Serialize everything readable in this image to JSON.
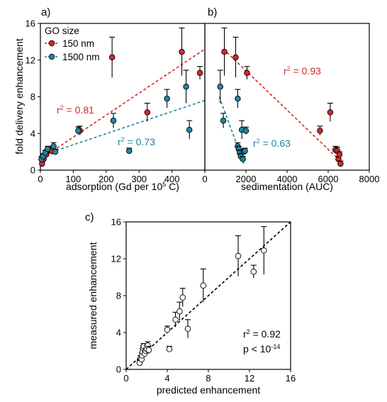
{
  "colors": {
    "red": "#d7262b",
    "teal": "#1f86a0",
    "axis": "#000000",
    "open": "#ffffff"
  },
  "chart_data": [
    {
      "panel_label": "a)",
      "type": "scatter",
      "xlabel": "adsorption (Gd per 10",
      "xlabel_sup": "5",
      "xlabel_tail": " C)",
      "ylabel": "fold delivery enhancement",
      "xlim": [
        0,
        500
      ],
      "ylim": [
        0,
        16
      ],
      "xticks": [
        0,
        100,
        200,
        300,
        400
      ],
      "yticks": [
        0,
        4,
        8,
        12,
        16
      ],
      "legend_title": "GO size",
      "series": [
        {
          "name": "150 nm",
          "color": "red",
          "points": [
            {
              "x": 5,
              "y": 0.7,
              "err": 0.3
            },
            {
              "x": 10,
              "y": 1.2,
              "err": 0.3
            },
            {
              "x": 18,
              "y": 1.7,
              "err": 0.3
            },
            {
              "x": 25,
              "y": 2.2,
              "err": 0.4
            },
            {
              "x": 35,
              "y": 2.1,
              "err": 0.4
            },
            {
              "x": 120,
              "y": 4.3,
              "err": 0.5
            },
            {
              "x": 218,
              "y": 12.3,
              "err": 2.2
            },
            {
              "x": 325,
              "y": 6.3,
              "err": 1.0
            },
            {
              "x": 430,
              "y": 12.9,
              "err": 2.6
            },
            {
              "x": 485,
              "y": 10.6,
              "err": 0.7
            }
          ],
          "fit": {
            "x": [
              0,
              500
            ],
            "y": [
              1.2,
              13.2
            ]
          },
          "r2_label": "r",
          "r2_value": " = 0.81"
        },
        {
          "name": "1500 nm",
          "color": "teal",
          "points": [
            {
              "x": 3,
              "y": 1.2,
              "err": 0.3
            },
            {
              "x": 8,
              "y": 1.5,
              "err": 0.3
            },
            {
              "x": 15,
              "y": 1.9,
              "err": 0.3
            },
            {
              "x": 22,
              "y": 2.3,
              "err": 0.3
            },
            {
              "x": 40,
              "y": 2.6,
              "err": 0.4
            },
            {
              "x": 45,
              "y": 2.0,
              "err": 0.3
            },
            {
              "x": 115,
              "y": 4.3,
              "err": 0.4
            },
            {
              "x": 222,
              "y": 5.4,
              "err": 0.8
            },
            {
              "x": 270,
              "y": 2.1,
              "err": 0.3
            },
            {
              "x": 385,
              "y": 7.8,
              "err": 1.0
            },
            {
              "x": 443,
              "y": 9.1,
              "err": 1.8
            },
            {
              "x": 453,
              "y": 4.4,
              "err": 1.0
            }
          ],
          "fit": {
            "x": [
              20,
              500
            ],
            "y": [
              1.8,
              7.6
            ]
          },
          "r2_label": "r",
          "r2_value": " = 0.73"
        }
      ]
    },
    {
      "panel_label": "b)",
      "type": "scatter",
      "xlabel": "sedimentation (AUC)",
      "xlim": [
        0,
        8000
      ],
      "ylim": [
        0,
        16
      ],
      "xticks": [
        0,
        2000,
        4000,
        6000,
        8000
      ],
      "series": [
        {
          "name": "150 nm",
          "color": "red",
          "points": [
            {
              "x": 950,
              "y": 12.9,
              "err": 2.6
            },
            {
              "x": 1500,
              "y": 12.3,
              "err": 2.2
            },
            {
              "x": 2050,
              "y": 10.6,
              "err": 0.7
            },
            {
              "x": 5600,
              "y": 4.3,
              "err": 0.5
            },
            {
              "x": 6100,
              "y": 6.3,
              "err": 1.0
            },
            {
              "x": 6350,
              "y": 2.2,
              "err": 0.4
            },
            {
              "x": 6450,
              "y": 2.1,
              "err": 0.4
            },
            {
              "x": 6500,
              "y": 1.2,
              "err": 0.3
            },
            {
              "x": 6550,
              "y": 1.7,
              "err": 0.3
            },
            {
              "x": 6600,
              "y": 0.7,
              "err": 0.3
            }
          ],
          "fit": {
            "x": [
              900,
              6500
            ],
            "y": [
              13.2,
              1.2
            ]
          },
          "r2_label": "r",
          "r2_value": " = 0.93"
        },
        {
          "name": "1500 nm",
          "color": "teal",
          "points": [
            {
              "x": 750,
              "y": 9.1,
              "err": 1.8
            },
            {
              "x": 900,
              "y": 5.4,
              "err": 0.8
            },
            {
              "x": 1600,
              "y": 7.8,
              "err": 1.0
            },
            {
              "x": 1600,
              "y": 2.6,
              "err": 0.4
            },
            {
              "x": 1650,
              "y": 2.3,
              "err": 0.3
            },
            {
              "x": 1700,
              "y": 1.9,
              "err": 0.3
            },
            {
              "x": 1750,
              "y": 1.5,
              "err": 0.3
            },
            {
              "x": 1800,
              "y": 4.4,
              "err": 1.0
            },
            {
              "x": 1850,
              "y": 1.2,
              "err": 0.3
            },
            {
              "x": 1900,
              "y": 2.0,
              "err": 0.3
            },
            {
              "x": 1950,
              "y": 2.1,
              "err": 0.3
            },
            {
              "x": 2000,
              "y": 4.3,
              "err": 0.4
            }
          ],
          "fit": {
            "x": [
              700,
              1900
            ],
            "y": [
              8.0,
              0.7
            ]
          },
          "r2_label": "r",
          "r2_value": " = 0.63"
        }
      ]
    },
    {
      "panel_label": "c)",
      "type": "scatter",
      "xlabel": "predicted enhancement",
      "ylabel": "measured enhancement",
      "xlim": [
        0,
        16
      ],
      "ylim": [
        0,
        16
      ],
      "xticks": [
        0,
        4,
        8,
        12,
        16
      ],
      "yticks": [
        0,
        4,
        8,
        12,
        16
      ],
      "series": [
        {
          "name": "",
          "color": "open",
          "points": [
            {
              "x": 1.3,
              "y": 0.7,
              "err": 0.3
            },
            {
              "x": 1.4,
              "y": 1.2,
              "err": 0.3
            },
            {
              "x": 1.5,
              "y": 1.1,
              "err": 0.3
            },
            {
              "x": 1.55,
              "y": 1.5,
              "err": 0.3
            },
            {
              "x": 1.6,
              "y": 1.9,
              "err": 0.3
            },
            {
              "x": 1.65,
              "y": 2.3,
              "err": 0.3
            },
            {
              "x": 1.7,
              "y": 2.5,
              "err": 0.3
            },
            {
              "x": 1.8,
              "y": 1.7,
              "err": 0.3
            },
            {
              "x": 1.9,
              "y": 2.0,
              "err": 0.3
            },
            {
              "x": 2.0,
              "y": 2.2,
              "err": 0.4
            },
            {
              "x": 2.1,
              "y": 2.6,
              "err": 0.4
            },
            {
              "x": 2.2,
              "y": 2.1,
              "err": 0.4
            },
            {
              "x": 4.0,
              "y": 4.3,
              "err": 0.4
            },
            {
              "x": 4.2,
              "y": 2.2,
              "err": 0.3
            },
            {
              "x": 4.8,
              "y": 5.4,
              "err": 0.8
            },
            {
              "x": 5.2,
              "y": 6.3,
              "err": 1.0
            },
            {
              "x": 5.5,
              "y": 7.8,
              "err": 1.0
            },
            {
              "x": 6.0,
              "y": 4.4,
              "err": 1.0
            },
            {
              "x": 7.5,
              "y": 9.1,
              "err": 1.8
            },
            {
              "x": 10.9,
              "y": 12.3,
              "err": 2.2
            },
            {
              "x": 12.4,
              "y": 10.6,
              "err": 0.7
            },
            {
              "x": 13.4,
              "y": 12.9,
              "err": 2.6
            }
          ]
        }
      ],
      "fit": {
        "x": [
          0,
          16
        ],
        "y": [
          0,
          16
        ]
      },
      "stats": {
        "r2_label": "r",
        "r2_value": " = 0.92",
        "p_text": "p < 10",
        "p_exp": "-14"
      }
    }
  ]
}
